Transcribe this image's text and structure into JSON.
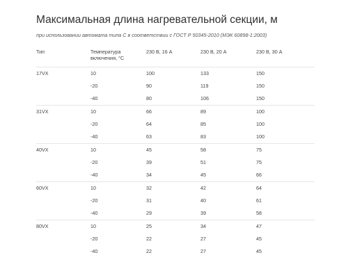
{
  "title": "Максимальная длина нагревательной секции, м",
  "subtitle": "при использовании автомата типа С в соответствии с ГОСТ Р 50345-2010 (МЭК 60898-1:2003)",
  "table": {
    "headers": {
      "type": "Тип",
      "temp": "Температура включения, °С",
      "col16": "230 В, 16 А",
      "col20": "230 В, 20 А",
      "col30": "230 В, 30 А"
    },
    "groups": [
      {
        "type": "17VX",
        "rows": [
          {
            "temp": "10",
            "a16": "100",
            "a20": "133",
            "a30": "150"
          },
          {
            "temp": "-20",
            "a16": "90",
            "a20": "119",
            "a30": "150"
          },
          {
            "temp": "-40",
            "a16": "80",
            "a20": "106",
            "a30": "150"
          }
        ]
      },
      {
        "type": "31VX",
        "rows": [
          {
            "temp": "10",
            "a16": "66",
            "a20": "89",
            "a30": "100"
          },
          {
            "temp": "-20",
            "a16": "64",
            "a20": "85",
            "a30": "100"
          },
          {
            "temp": "-40",
            "a16": "63",
            "a20": "83",
            "a30": "100"
          }
        ]
      },
      {
        "type": "40VX",
        "rows": [
          {
            "temp": "10",
            "a16": "45",
            "a20": "58",
            "a30": "75"
          },
          {
            "temp": "-20",
            "a16": "39",
            "a20": "51",
            "a30": "75"
          },
          {
            "temp": "-40",
            "a16": "34",
            "a20": "45",
            "a30": "66"
          }
        ]
      },
      {
        "type": "60VX",
        "rows": [
          {
            "temp": "10",
            "a16": "32",
            "a20": "42",
            "a30": "64"
          },
          {
            "temp": "-20",
            "a16": "31",
            "a20": "40",
            "a30": "61"
          },
          {
            "temp": "-40",
            "a16": "29",
            "a20": "39",
            "a30": "58"
          }
        ]
      },
      {
        "type": "80VX",
        "rows": [
          {
            "temp": "10",
            "a16": "25",
            "a20": "34",
            "a30": "47"
          },
          {
            "temp": "-20",
            "a16": "22",
            "a20": "27",
            "a30": "45"
          },
          {
            "temp": "-40",
            "a16": "22",
            "a20": "27",
            "a30": "45"
          }
        ]
      }
    ]
  }
}
